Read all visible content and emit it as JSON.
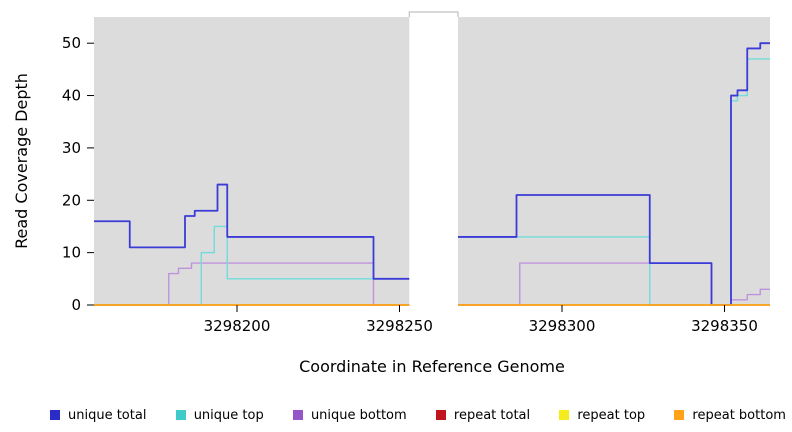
{
  "chart_data": {
    "type": "line",
    "step": true,
    "title": "",
    "xlabel": "Coordinate in Reference Genome",
    "ylabel": "Read Coverage Depth",
    "xlim": [
      3298156,
      3298364
    ],
    "ylim": [
      0,
      55
    ],
    "x_ticks": [
      3298200,
      3298250,
      3298300,
      3298350
    ],
    "y_ticks": [
      0,
      10,
      20,
      30,
      40,
      50
    ],
    "panel_bg": "#DCDCDC",
    "grid": false,
    "legend_position": "bottom",
    "gap_x": [
      3298253,
      3298268
    ],
    "series": [
      {
        "name": "unique total",
        "color": "#3B3BD8",
        "legend_color": "#2B2BC8",
        "steps": [
          [
            3298156,
            16
          ],
          [
            3298167,
            11
          ],
          [
            3298184,
            17
          ],
          [
            3298187,
            18
          ],
          [
            3298194,
            23
          ],
          [
            3298197,
            13
          ],
          [
            3298242,
            5
          ],
          [
            3298253,
            null
          ],
          [
            3298268,
            13
          ],
          [
            3298286,
            21
          ],
          [
            3298327,
            8
          ],
          [
            3298346,
            0
          ],
          [
            3298352,
            40
          ],
          [
            3298354,
            41
          ],
          [
            3298357,
            49
          ],
          [
            3298361,
            50
          ]
        ]
      },
      {
        "name": "unique top",
        "color": "#72DBDB",
        "legend_color": "#3FC9C9",
        "steps": [
          [
            3298156,
            0
          ],
          [
            3298189,
            10
          ],
          [
            3298193,
            15
          ],
          [
            3298197,
            5
          ],
          [
            3298253,
            null
          ],
          [
            3298268,
            13
          ],
          [
            3298327,
            0
          ],
          [
            3298352,
            39
          ],
          [
            3298354,
            40
          ],
          [
            3298357,
            47
          ]
        ]
      },
      {
        "name": "unique bottom",
        "color": "#BE93DC",
        "legend_color": "#9456C8",
        "steps": [
          [
            3298156,
            0
          ],
          [
            3298179,
            6
          ],
          [
            3298182,
            7
          ],
          [
            3298186,
            8
          ],
          [
            3298242,
            0
          ],
          [
            3298253,
            null
          ],
          [
            3298268,
            0
          ],
          [
            3298287,
            8
          ],
          [
            3298346,
            0
          ],
          [
            3298352,
            1
          ],
          [
            3298357,
            2
          ],
          [
            3298361,
            3
          ]
        ]
      },
      {
        "name": "repeat total",
        "color": "#C0151E",
        "legend_color": "#C0151E",
        "steps": [
          [
            3298156,
            0
          ],
          [
            3298253,
            null
          ],
          [
            3298268,
            0
          ]
        ]
      },
      {
        "name": "repeat top",
        "color": "#F5EC1E",
        "legend_color": "#F5EC1E",
        "steps": [
          [
            3298156,
            0
          ],
          [
            3298253,
            null
          ],
          [
            3298268,
            0
          ]
        ]
      },
      {
        "name": "repeat bottom",
        "color": "#FFA219",
        "legend_color": "#FFA219",
        "steps": [
          [
            3298156,
            0
          ],
          [
            3298253,
            null
          ],
          [
            3298268,
            0
          ]
        ]
      }
    ]
  }
}
